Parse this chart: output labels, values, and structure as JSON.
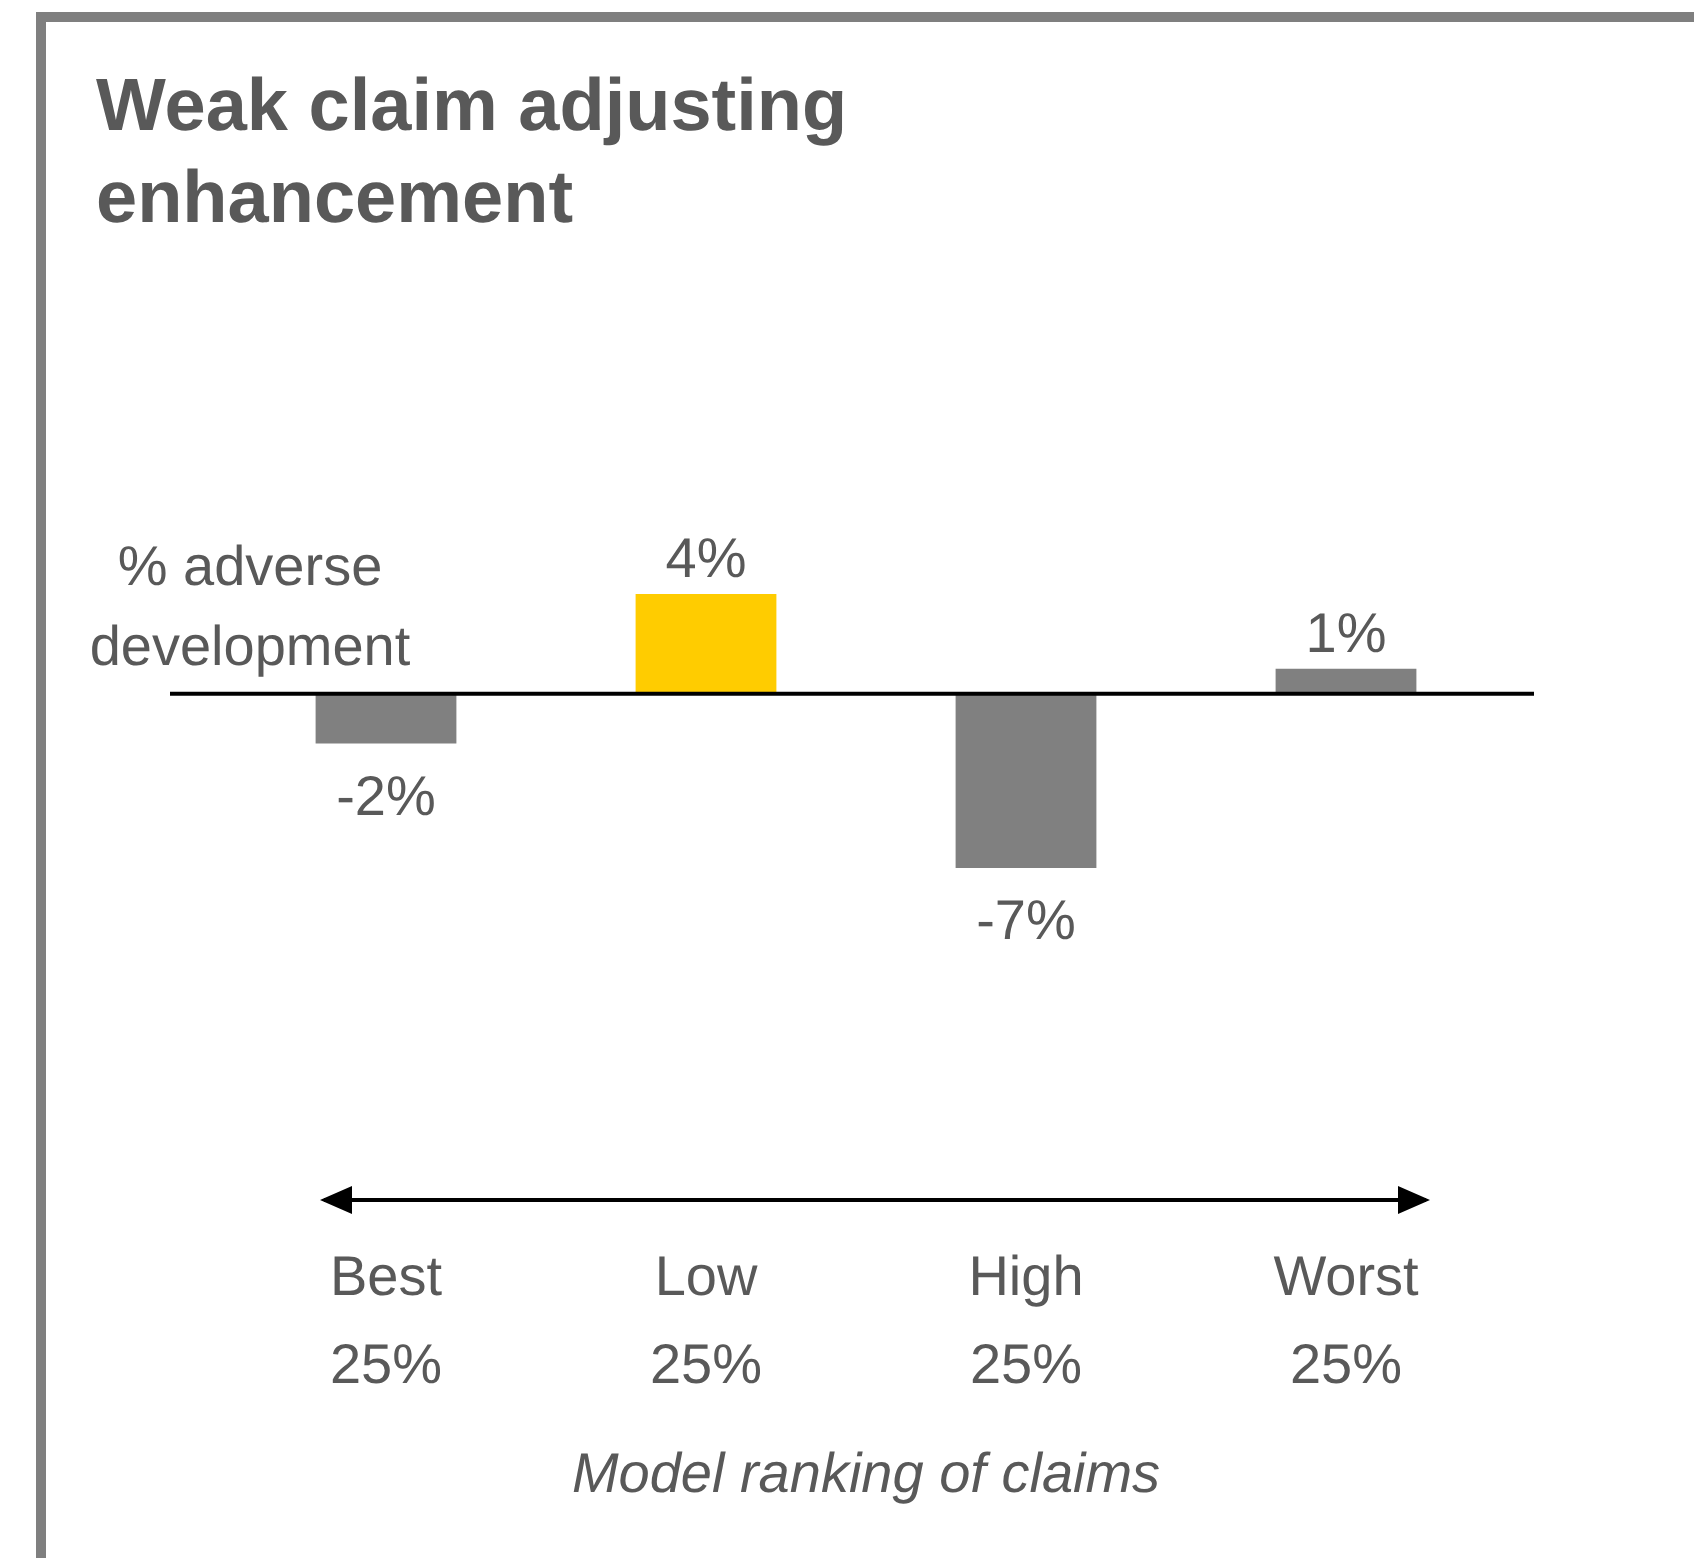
{
  "chart_data": {
    "type": "bar",
    "title": "Weak claim adjusting enhancement",
    "xlabel": "Model ranking of claims",
    "ylabel": "% adverse development",
    "categories": [
      "Best 25%",
      "Low 25%",
      "High 25%",
      "Worst 25%"
    ],
    "values": [
      -2,
      4,
      -7,
      1
    ],
    "colors": [
      "#808080",
      "#ffcc00",
      "#808080",
      "#808080"
    ],
    "value_labels": [
      "-2%",
      "4%",
      "-7%",
      "1%"
    ],
    "legend": false,
    "grid": false
  }
}
